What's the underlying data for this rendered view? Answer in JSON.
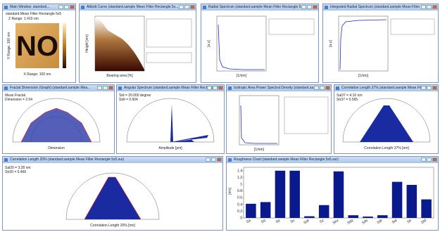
{
  "windows": [
    {
      "title": "Main Window: standard...",
      "lines": [
        "standard.Mean Filter Rectangle 5x5",
        "Z Range: 1.410 nm",
        "X Range: 100 nm",
        "Y Range: 100 nm"
      ],
      "image_text": "NO"
    },
    {
      "title": "Abbott Curve (standard.sample Mean Filter Rectangle 5x...",
      "lines": [
        "Bearing area [%]",
        "Height [nm]"
      ]
    },
    {
      "title": "Radial Spectrum (standard.sample Mean Filter Rectangle 5x...",
      "lines": [
        "[1/nm]",
        "[a.u]"
      ]
    },
    {
      "title": "Integrated Radial Spectrum (standard.sample Mean Filter R...",
      "lines": [
        "[1/nm]",
        "[a.u]"
      ]
    },
    {
      "title": "Fractal Dimension (Graph) (standard.sample Mea...",
      "lines": [
        "Mean Fractal",
        "Dimension = 2.04",
        "Dimension"
      ]
    },
    {
      "title": "Angular Spectrum (standard.sample Mean Filter Rectangle 5...",
      "lines": [
        "Std = 20.000 degree",
        "Stdi = 0.604",
        "Amplitude [pm]"
      ]
    },
    {
      "title": "Isotropic Area Power Spectral Density (standard.sa...",
      "lines": [
        "[1/nm]"
      ]
    },
    {
      "title": "Correlation Length 37% (standard.sample Mean Filter R...",
      "lines": [
        "Sal37 = 4.10 nm",
        "Str37 = 0.565",
        "Correlation Length 37% [nm]"
      ]
    },
    {
      "title": "Correlation Length 20% (standard.sample Mean Filter Rectangle 5x5.sur)",
      "lines": [
        "Sal20 = 3.28 nm",
        "Str20 = 0.466",
        "Correlation Length 20% [nm]"
      ]
    },
    {
      "title": "Roughness Chart (standard.sample Mean Filter Rectangle 5x5.sur)",
      "lines": []
    }
  ],
  "chart_data": {
    "type": "bar",
    "y_label": "[nm]",
    "categories": [
      "Sa",
      "Sq",
      "Sp",
      "Sv",
      "Ssk",
      "Sz",
      "Sku",
      "Sdq",
      "Sds",
      "Sdr",
      "Sal",
      "Str",
      "Std"
    ],
    "values": [
      0.42,
      0.47,
      1.4,
      1.4,
      0.05,
      0.38,
      1.38,
      0.08,
      0.04,
      0.08,
      1.07,
      0.98,
      0.55
    ],
    "color": "#0a1a8c",
    "ylim": [
      0,
      1.5
    ],
    "yticks": [
      0,
      0.2,
      0.4,
      0.6,
      0.8,
      1,
      1.2,
      1.4
    ]
  }
}
